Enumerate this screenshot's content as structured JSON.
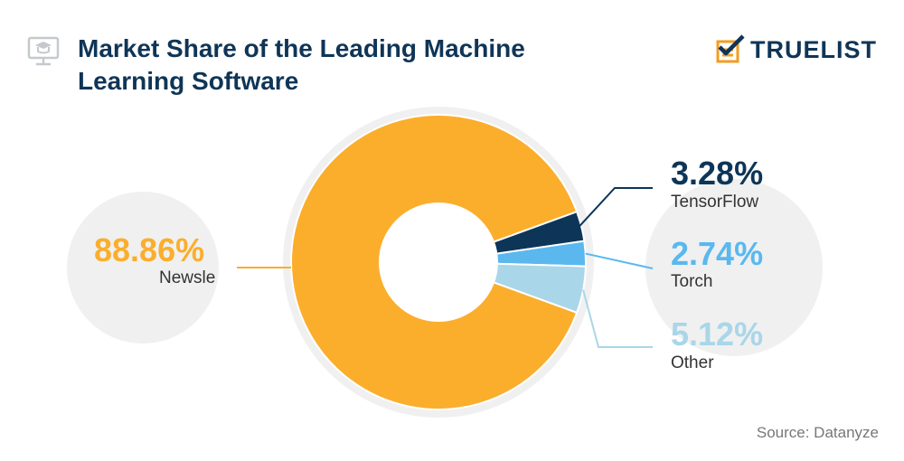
{
  "header": {
    "title_line1": "Market Share of the Leading Machine",
    "title_line2": "Learning Software",
    "icon": "monitor-graduation-cap-icon"
  },
  "logo": {
    "text": "TRUELIST",
    "icon": "checkmark-list-icon"
  },
  "source": "Source: Datanyze",
  "colors": {
    "title": "#0f3557",
    "newsle": "#fbae2c",
    "tensorflow": "#0d3557",
    "torch": "#5ab8ef",
    "other": "#a9d6e8",
    "bubble": "#f0f0f0",
    "text_dark": "#333333",
    "source": "#777777",
    "logo_orange": "#f29e1f"
  },
  "chart_data": {
    "type": "pie",
    "variant": "donut",
    "categories": [
      "Newsle",
      "TensorFlow",
      "Torch",
      "Other"
    ],
    "values": [
      88.86,
      3.28,
      2.74,
      5.12
    ],
    "labels": [
      "88.86%",
      "3.28%",
      "2.74%",
      "5.12%"
    ],
    "unit": "%"
  }
}
